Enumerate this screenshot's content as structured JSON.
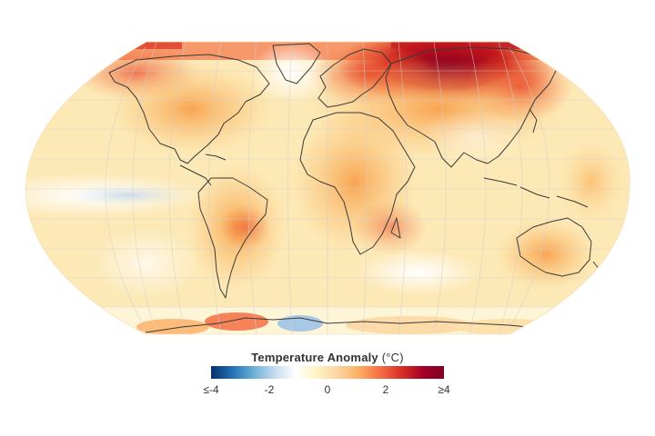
{
  "legend": {
    "title": "Temperature Anomaly",
    "unit": "(°C)",
    "colors": [
      "#08306b",
      "#2171b5",
      "#6baed6",
      "#c6dbef",
      "#ffffff",
      "#fff3c4",
      "#fdd49e",
      "#fdae61",
      "#f46d43",
      "#d73027",
      "#a50026",
      "#800026"
    ],
    "ticks": [
      {
        "label": "≤-4",
        "value": -4
      },
      {
        "label": "-2",
        "value": -2
      },
      {
        "label": "0",
        "value": 0
      },
      {
        "label": "2",
        "value": 2
      },
      {
        "label": "≥4",
        "value": 4
      }
    ],
    "range": [
      -4,
      4
    ]
  },
  "map": {
    "projection": "Robinson",
    "land_outline_color": "#3a3a3a",
    "graticule_color": "#cfcfcf",
    "ocean_base_color": "#fff1c6"
  }
}
